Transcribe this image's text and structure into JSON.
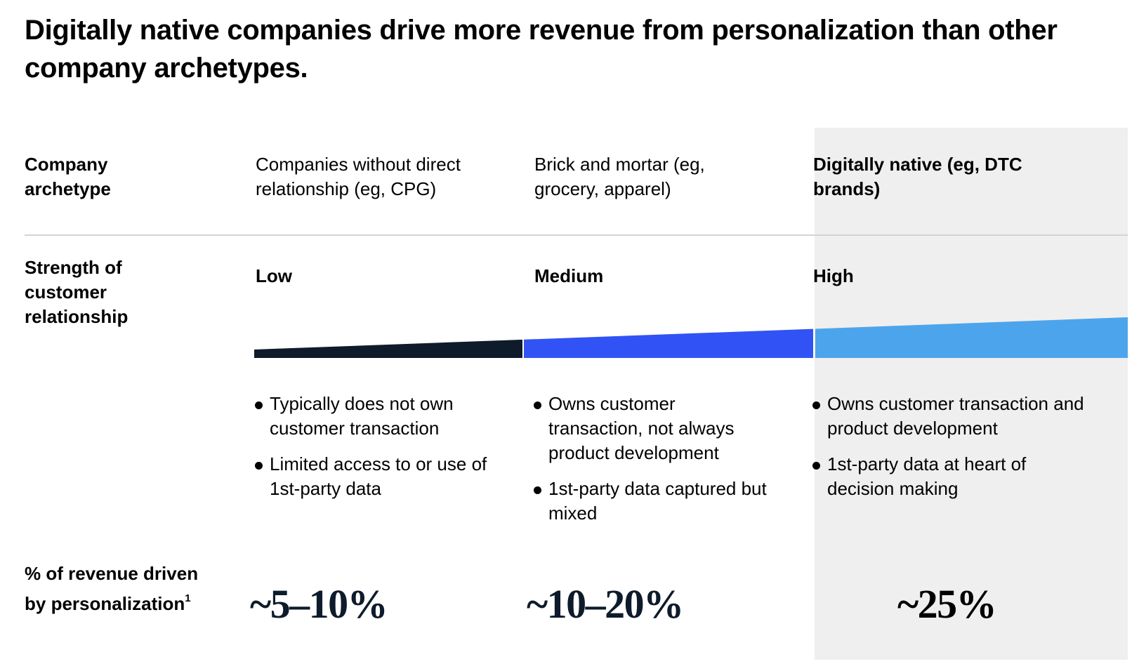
{
  "title": "Digitally native companies drive more revenue from personalization than other company archetypes.",
  "row_labels": {
    "archetype": "Company archetype",
    "strength": "Strength of customer relationship",
    "revenue": "% of revenue driven by personalization",
    "revenue_footnote": "1"
  },
  "columns": [
    {
      "archetype": "Companies without direct relationship (eg, CPG)",
      "strength": "Low",
      "bullets": [
        "Typically does not own customer transaction",
        "Limited access to or use of 1st-party data"
      ],
      "revenue": "~5–10%",
      "color": "#0e1b2b"
    },
    {
      "archetype": "Brick and mortar (eg, grocery, apparel)",
      "strength": "Medium",
      "bullets": [
        "Owns customer transaction, not always product development",
        "1st-party data captured but mixed"
      ],
      "revenue": "~10–20%",
      "color": "#3153f5"
    },
    {
      "archetype": "Digitally native (eg, DTC brands)",
      "strength": "High",
      "bullets": [
        "Owns customer transaction and product development",
        "1st-party data at heart of decision making"
      ],
      "revenue": "~25%",
      "color": "#4ca5ec"
    }
  ],
  "colors": {
    "highlight_panel": "#efefef",
    "revenue_text_dark": "#0e1b2b",
    "revenue_text_highlight": "#000000"
  }
}
